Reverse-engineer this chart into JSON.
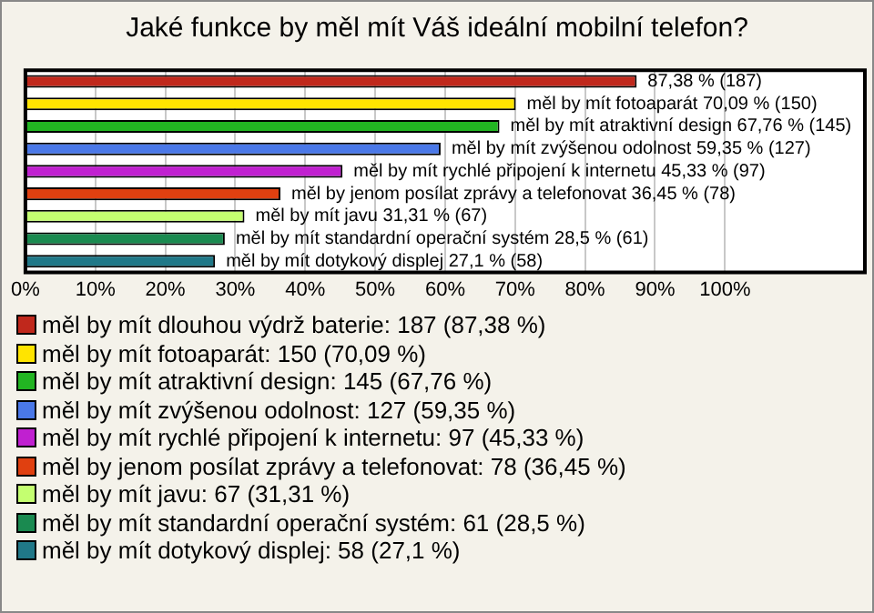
{
  "chart_data": {
    "type": "bar",
    "orientation": "horizontal",
    "title": "Jaké funkce by měl mít Váš ideální mobilní telefon?",
    "categories": [
      null,
      null,
      null,
      null,
      null,
      null,
      null,
      null,
      null
    ],
    "series": [
      {
        "name": "měl by mít dlouhou výdrž baterie: 187 (87,38 %)",
        "color": "#c0281c",
        "values": [
          87.38,
          null,
          null,
          null,
          null,
          null,
          null,
          null,
          null
        ],
        "value_labels": [
          "87,38 % (187)",
          null,
          null,
          null,
          null,
          null,
          null,
          null,
          null
        ]
      },
      {
        "name": "měl by mít fotoaparát: 150 (70,09 %)",
        "color": "#ffe400",
        "values": [
          null,
          70.09,
          null,
          null,
          null,
          null,
          null,
          null,
          null
        ],
        "value_labels": [
          null,
          "měl by mít fotoaparát 70,09 % (150)",
          null,
          null,
          null,
          null,
          null,
          null,
          null
        ]
      },
      {
        "name": "měl by mít atraktivní design: 145 (67,76 %)",
        "color": "#22b422",
        "values": [
          null,
          null,
          67.76,
          null,
          null,
          null,
          null,
          null,
          null
        ],
        "value_labels": [
          null,
          null,
          "měl by mít atraktivní design 67,76 % (145)",
          null,
          null,
          null,
          null,
          null,
          null
        ]
      },
      {
        "name": "měl by mít zvýšenou odolnost: 127 (59,35 %)",
        "color": "#4a78e8",
        "values": [
          null,
          null,
          null,
          59.35,
          null,
          null,
          null,
          null,
          null
        ],
        "value_labels": [
          null,
          null,
          null,
          "měl by mít zvýšenou odolnost 59,35 % (127)",
          null,
          null,
          null,
          null,
          null
        ]
      },
      {
        "name": "měl by mít rychlé připojení k internetu: 97 (45,33 %)",
        "color": "#c020d0",
        "values": [
          null,
          null,
          null,
          null,
          45.33,
          null,
          null,
          null,
          null
        ],
        "value_labels": [
          null,
          null,
          null,
          null,
          "měl by mít rychlé připojení k internetu 45,33 % (97)",
          null,
          null,
          null,
          null
        ]
      },
      {
        "name": "měl by jenom posílat zprávy a telefonovat: 78 (36,45 %)",
        "color": "#e04010",
        "values": [
          null,
          null,
          null,
          null,
          null,
          36.45,
          null,
          null,
          null
        ],
        "value_labels": [
          null,
          null,
          null,
          null,
          null,
          "měl by jenom posílat zprávy a telefonovat 36,45 % (78)",
          null,
          null,
          null
        ]
      },
      {
        "name": "měl by mít javu: 67 (31,31 %)",
        "color": "#c4ff70",
        "values": [
          null,
          null,
          null,
          null,
          null,
          null,
          31.31,
          null,
          null
        ],
        "value_labels": [
          null,
          null,
          null,
          null,
          null,
          null,
          "měl by mít javu 31,31 % (67)",
          null,
          null
        ]
      },
      {
        "name": "měl by mít standardní operační systém: 61 (28,5 %)",
        "color": "#1a8a50",
        "values": [
          null,
          null,
          null,
          null,
          null,
          null,
          null,
          28.5,
          null
        ],
        "value_labels": [
          null,
          null,
          null,
          null,
          null,
          null,
          null,
          "měl by mít standardní operační systém 28,5 % (61)",
          null
        ]
      },
      {
        "name": "měl by mít dotykový displej: 58 (27,1 %)",
        "color": "#207888",
        "values": [
          null,
          null,
          null,
          null,
          null,
          null,
          null,
          null,
          27.1
        ],
        "value_labels": [
          null,
          null,
          null,
          null,
          null,
          null,
          null,
          null,
          "měl by mít dotykový displej 27,1 % (58)"
        ]
      }
    ],
    "xlim": [
      0,
      120
    ],
    "xticks": [
      {
        "value": 0,
        "label": "0%"
      },
      {
        "value": 10,
        "label": "10%"
      },
      {
        "value": 20,
        "label": "20%"
      },
      {
        "value": 30,
        "label": "30%"
      },
      {
        "value": 40,
        "label": "40%"
      },
      {
        "value": 50,
        "label": "50%"
      },
      {
        "value": 60,
        "label": "60%"
      },
      {
        "value": 70,
        "label": "70%"
      },
      {
        "value": 80,
        "label": "80%"
      },
      {
        "value": 90,
        "label": "90%"
      },
      {
        "value": 100,
        "label": "100%"
      }
    ],
    "grid": "x",
    "legend": "bottom"
  }
}
